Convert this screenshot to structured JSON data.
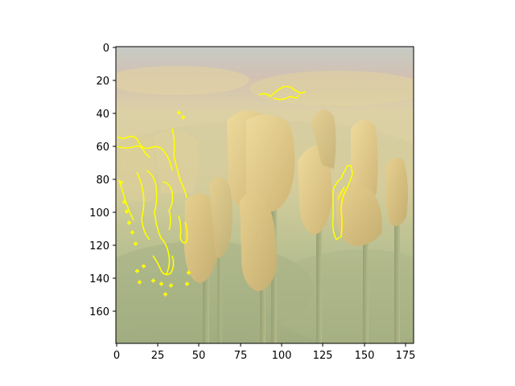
{
  "figure": {
    "description_style": "photo",
    "x_ticks": [
      "0",
      "25",
      "50",
      "75",
      "100",
      "125",
      "150",
      "175"
    ],
    "y_ticks": [
      "0",
      "20",
      "40",
      "60",
      "80",
      "100",
      "120",
      "140",
      "160"
    ],
    "overlay_color": "#ffff00",
    "axis_color": "#000000"
  }
}
